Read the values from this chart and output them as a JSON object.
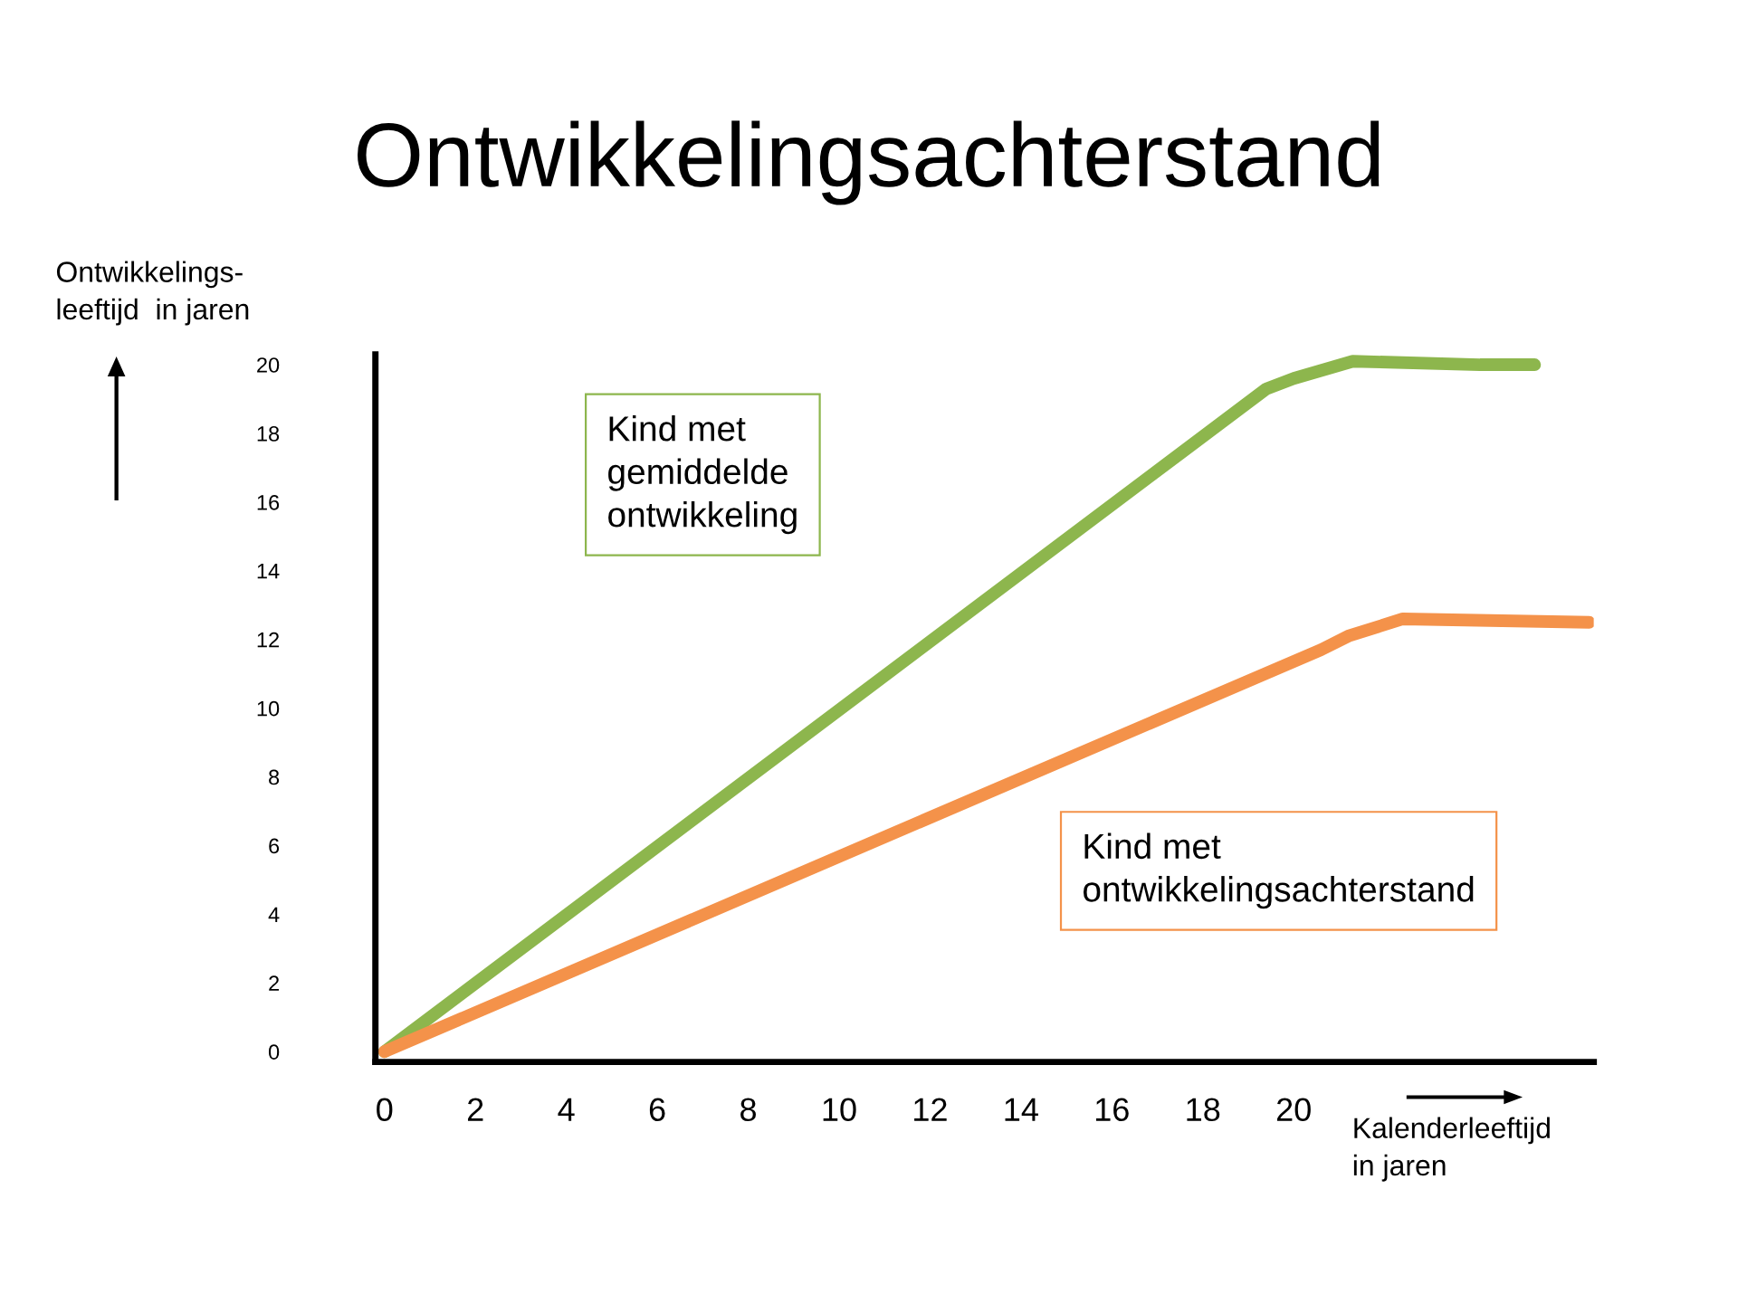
{
  "chart_data": {
    "type": "line",
    "title": "Ontwikkelingsachterstand",
    "xlabel": "Kalenderleeftijd\nin jaren",
    "ylabel": "Ontwikkelings-\nleeftijd  in jaren",
    "series": [
      {
        "color": "#8db64d",
        "x": [
          0,
          19.4,
          20.0,
          21.3,
          24.1,
          25.3
        ],
        "values": [
          0,
          19.3,
          19.6,
          20.1,
          20.0,
          20.0
        ]
      },
      {
        "color": "#f4924a",
        "x": [
          0,
          20.6,
          21.2,
          22.4,
          26.5
        ],
        "values": [
          0,
          11.7,
          12.1,
          12.6,
          12.5
        ]
      }
    ],
    "annotations": [
      "Kind met\ngemiddelde\nontwikkeling",
      "Kind met\nontwikkelingsachterstand"
    ],
    "xlim": [
      -0.2,
      26.6
    ],
    "ylim": [
      -0.3,
      20.3
    ],
    "xticks": [
      0,
      2,
      4,
      6,
      8,
      10,
      12,
      14,
      16,
      18,
      20
    ],
    "yticks": [
      0,
      2,
      4,
      6,
      8,
      10,
      12,
      14,
      16,
      18,
      20
    ],
    "grid": false,
    "legend": false,
    "marker": "none",
    "line_style": "solid"
  }
}
